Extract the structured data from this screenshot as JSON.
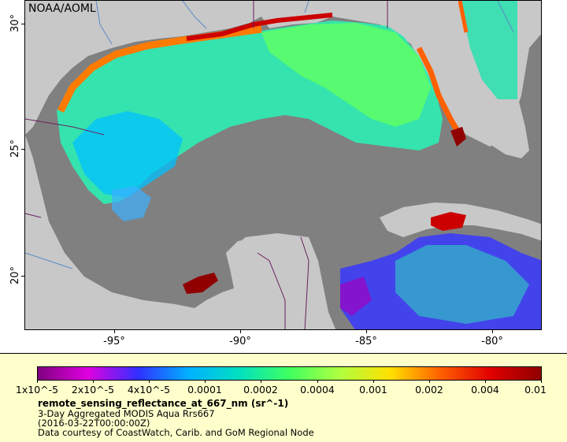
{
  "credit": "NOAA/AOML",
  "y_ticks": [
    "30°",
    "25°",
    "20°"
  ],
  "x_ticks": [
    "-95°",
    "-90°",
    "-85°",
    "-80°"
  ],
  "colorbar": {
    "labels": [
      "1x10^-5",
      "2x10^-5",
      "4x10^-5",
      "0.0001",
      "0.0002",
      "0.0004",
      "0.001",
      "0.002",
      "0.004",
      "0.01"
    ],
    "colors": [
      "#800080",
      "#e000e0",
      "#3030ff",
      "#00b0ff",
      "#00e0c0",
      "#40ff60",
      "#b0ff40",
      "#ffe000",
      "#ff6000",
      "#e00000",
      "#900000"
    ]
  },
  "info": {
    "variable": "remote_sensing_reflectance_at_667_nm (sr^-1)",
    "line2": "3-Day Aggregated MODIS Aqua Rrs667",
    "line3": "(2016-03-22T00:00:00Z)",
    "line4": "Data courtesy of CoastWatch, Carib. and GoM Regional Node"
  },
  "colors": {
    "land": "#c8c8c8",
    "nodata": "#808080",
    "legend_bg": "#ffffcc"
  }
}
